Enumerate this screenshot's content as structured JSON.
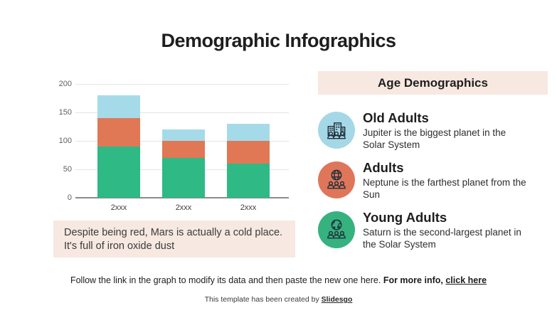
{
  "slide": {
    "title": "Demographic Infographics"
  },
  "chart_data": {
    "type": "bar",
    "stacked": true,
    "categories": [
      "2xxx",
      "2xxx",
      "2xxx"
    ],
    "series": [
      {
        "name": "Young Adults",
        "color": "#2eb985",
        "values": [
          90,
          70,
          60
        ]
      },
      {
        "name": "Adults",
        "color": "#e07856",
        "values": [
          50,
          30,
          40
        ]
      },
      {
        "name": "Old Adults",
        "color": "#a5dbe9",
        "values": [
          40,
          20,
          30
        ]
      }
    ],
    "title": "",
    "xlabel": "",
    "ylabel": "",
    "yticks": [
      0,
      50,
      100,
      150,
      200
    ],
    "ylim": [
      0,
      200
    ],
    "grid": true,
    "legend": "none"
  },
  "note_box": {
    "lines": [
      "Despite being red, Mars is actually a cold place.",
      "It's full of iron oxide dust"
    ]
  },
  "panel": {
    "header": "Age Demographics",
    "items": [
      {
        "title": "Old Adults",
        "description": "Jupiter is the biggest planet in the Solar System",
        "icon": "city-people-icon",
        "color": "#a5d8e6"
      },
      {
        "title": "Adults",
        "description": "Neptune is the farthest planet from the Sun",
        "icon": "globe-people-icon",
        "color": "#df765a"
      },
      {
        "title": "Young Adults",
        "description": "Saturn is the second-largest planet in the Solar System",
        "icon": "earth-people-icon",
        "color": "#36b27f"
      }
    ]
  },
  "footer": {
    "instruction": "Follow the link in the graph to modify its data and then paste the new one here.",
    "more_info": "For more info,",
    "link": "click here",
    "credit": "This template has been created by",
    "credit_link": "Slidesgo"
  },
  "colors": {
    "background": "#ffffff",
    "accent_peach": "#f7e8e1",
    "text_dark": "#1e1e1e",
    "icon_stroke": "#22303c",
    "axis_label": "#5f5f5f",
    "gridline": "#e4e4e4",
    "axis_line": "#8b8b8b"
  }
}
